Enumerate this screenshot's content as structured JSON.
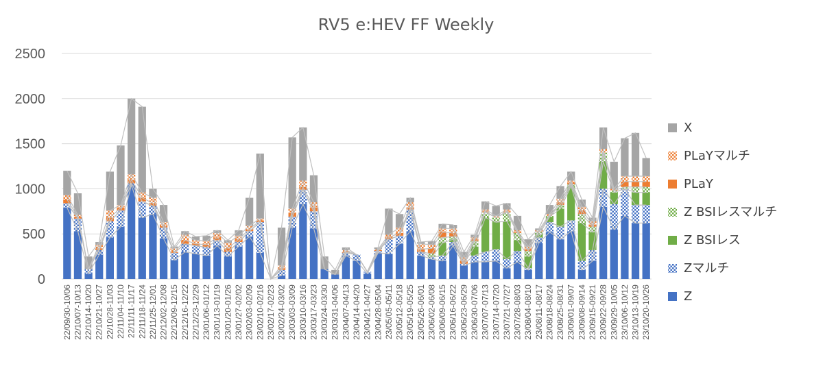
{
  "chart_data": {
    "type": "bar",
    "stacked": true,
    "title": "RV5 e:HEV FF Weekly",
    "ylim": [
      0,
      2500
    ],
    "yticks": [
      0,
      500,
      1000,
      1500,
      2000,
      2500
    ],
    "grid": true,
    "legend_position": "right",
    "categories": [
      "22/09/30-10/06",
      "22/10/07-10/13",
      "22/10/14-10/20",
      "22/10/21-10/27",
      "22/10/28-11/03",
      "22/11/04-11/10",
      "22/11/11-11/17",
      "22/11/18-11/24",
      "22/11/25-12/01",
      "22/12/02-12/08",
      "22/12/09-12/15",
      "22/12/16-12/22",
      "22/12/23-12/29",
      "23/01/06-01/12",
      "23/01/13-01/19",
      "23/01/20-01/26",
      "23/01/27-02/02",
      "23/02/03-02/09",
      "23/02/10-02/16",
      "23/02/17-02/23",
      "23/02/24-03/02",
      "23/03/03-03/09",
      "23/03/10-03/16",
      "23/03/17-03/23",
      "23/03/24-03/30",
      "23/03/31-04/06",
      "23/04/07-04/13",
      "23/04/14-04/20",
      "23/04/21-04/27",
      "23/04/28-05/04",
      "23/05/05-05/11",
      "23/05/12-05/18",
      "23/05/19-05/25",
      "23/05/26-06/01",
      "23/06/02-06/08",
      "23/06/09-06/15",
      "23/06/16-06/22",
      "23/06/23-06/29",
      "23/06/30-07/06",
      "23/07/07-07/13",
      "23/07/14-07/20",
      "23/07/21-07/27",
      "23/07/28-08/03",
      "23/08/04-08/10",
      "23/08/11-08/17",
      "23/08/18-08/24",
      "23/08/25-08/31",
      "23/09/01-09/07",
      "23/09/08-09/14",
      "23/09/15-09/21",
      "23/09/22-09/28",
      "23/09/29-10/05",
      "23/10/06-10/12",
      "23/10/13-10/19",
      "23/10/20-10/26"
    ],
    "series": [
      {
        "name": "Z",
        "color": "#4472C4",
        "pattern": "solid",
        "values": [
          790,
          530,
          60,
          270,
          460,
          580,
          1040,
          680,
          720,
          450,
          210,
          300,
          280,
          260,
          370,
          250,
          360,
          470,
          290,
          0,
          40,
          570,
          830,
          560,
          110,
          50,
          260,
          200,
          60,
          290,
          280,
          390,
          530,
          260,
          220,
          200,
          370,
          150,
          190,
          190,
          200,
          120,
          190,
          100,
          400,
          520,
          440,
          530,
          100,
          200,
          800,
          550,
          700,
          620,
          620
        ]
      },
      {
        "name": "Zマルチ",
        "color": "#4472C4",
        "pattern": "check",
        "values": [
          50,
          140,
          50,
          50,
          180,
          180,
          20,
          180,
          90,
          120,
          80,
          90,
          90,
          90,
          60,
          50,
          50,
          60,
          340,
          0,
          60,
          120,
          160,
          190,
          0,
          0,
          30,
          70,
          20,
          20,
          160,
          90,
          240,
          40,
          20,
          60,
          40,
          20,
          70,
          110,
          130,
          100,
          120,
          20,
          60,
          110,
          140,
          120,
          100,
          120,
          200,
          280,
          300,
          200,
          200
        ]
      },
      {
        "name": "Z BSIレス",
        "color": "#70AD47",
        "pattern": "solid",
        "values": [
          0,
          0,
          0,
          0,
          0,
          0,
          0,
          0,
          0,
          0,
          0,
          0,
          0,
          0,
          0,
          0,
          0,
          0,
          0,
          0,
          0,
          0,
          0,
          0,
          0,
          0,
          0,
          0,
          0,
          0,
          0,
          0,
          0,
          0,
          0,
          140,
          30,
          0,
          100,
          380,
          300,
          420,
          120,
          130,
          30,
          60,
          200,
          380,
          420,
          200,
          300,
          130,
          0,
          140,
          140
        ]
      },
      {
        "name": "Z BSIレスマルチ",
        "color": "#70AD47",
        "pattern": "check",
        "values": [
          0,
          0,
          0,
          0,
          0,
          0,
          0,
          0,
          0,
          0,
          0,
          0,
          0,
          0,
          0,
          0,
          0,
          0,
          0,
          0,
          0,
          0,
          0,
          0,
          0,
          0,
          0,
          0,
          0,
          0,
          0,
          0,
          0,
          0,
          40,
          60,
          30,
          0,
          60,
          60,
          50,
          100,
          80,
          60,
          30,
          10,
          40,
          20,
          100,
          60,
          100,
          20,
          20,
          60,
          60
        ]
      },
      {
        "name": "PLaY",
        "color": "#ED7D31",
        "pattern": "solid",
        "values": [
          40,
          20,
          0,
          20,
          40,
          30,
          40,
          40,
          30,
          20,
          10,
          40,
          20,
          30,
          30,
          40,
          30,
          20,
          20,
          0,
          20,
          40,
          30,
          40,
          0,
          0,
          10,
          0,
          0,
          10,
          20,
          30,
          20,
          30,
          60,
          60,
          40,
          30,
          20,
          10,
          0,
          10,
          10,
          20,
          0,
          0,
          30,
          20,
          40,
          20,
          0,
          0,
          60,
          60,
          60
        ]
      },
      {
        "name": "PLaYマルチ",
        "color": "#ED7D31",
        "pattern": "check",
        "values": [
          50,
          20,
          0,
          40,
          80,
          30,
          60,
          60,
          60,
          40,
          40,
          60,
          40,
          40,
          50,
          60,
          40,
          40,
          20,
          0,
          30,
          50,
          70,
          60,
          0,
          0,
          20,
          0,
          0,
          10,
          30,
          60,
          60,
          60,
          40,
          40,
          50,
          40,
          20,
          20,
          20,
          20,
          20,
          30,
          20,
          20,
          40,
          20,
          40,
          40,
          40,
          20,
          60,
          60,
          60
        ]
      },
      {
        "name": "X",
        "color": "#A5A5A5",
        "pattern": "solid",
        "values": [
          270,
          240,
          140,
          30,
          430,
          660,
          840,
          950,
          100,
          190,
          20,
          40,
          40,
          60,
          30,
          30,
          60,
          310,
          720,
          0,
          420,
          790,
          590,
          300,
          140,
          50,
          30,
          0,
          0,
          20,
          290,
          150,
          50,
          20,
          40,
          50,
          40,
          60,
          30,
          90,
          110,
          70,
          160,
          80,
          20,
          100,
          140,
          100,
          80,
          40,
          240,
          300,
          420,
          480,
          200
        ]
      }
    ]
  }
}
